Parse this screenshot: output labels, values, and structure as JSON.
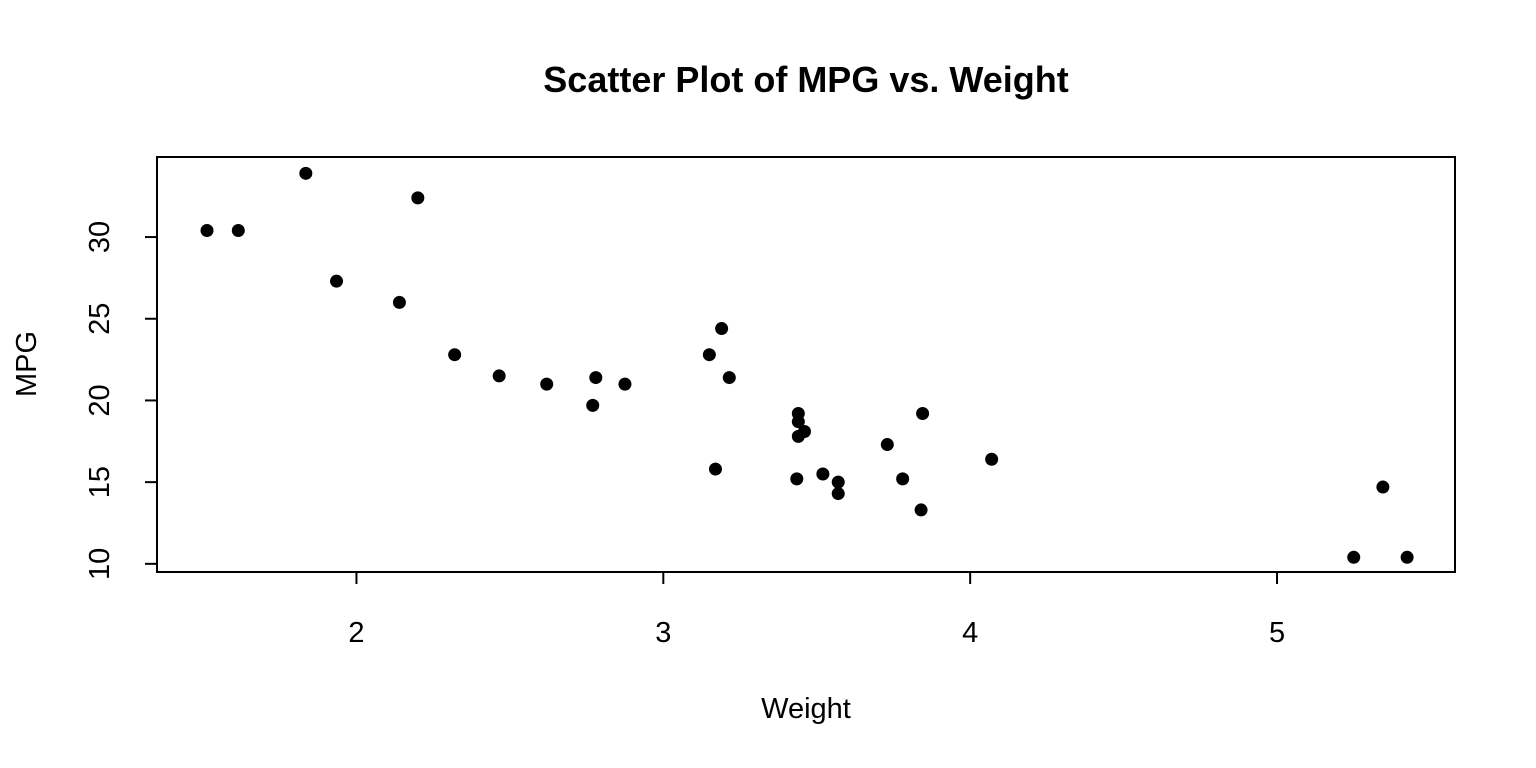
{
  "chart_data": {
    "type": "scatter",
    "title": "Scatter Plot of MPG vs. Weight",
    "xlabel": "Weight",
    "ylabel": "MPG",
    "xlim": [
      1.35,
      5.58
    ],
    "ylim": [
      9.5,
      34.9
    ],
    "xticks": [
      2,
      3,
      4,
      5
    ],
    "yticks": [
      10,
      15,
      20,
      25,
      30
    ],
    "grid": false,
    "point_color": "#000000",
    "points": [
      {
        "x": 2.62,
        "y": 21.0
      },
      {
        "x": 2.875,
        "y": 21.0
      },
      {
        "x": 2.32,
        "y": 22.8
      },
      {
        "x": 3.215,
        "y": 21.4
      },
      {
        "x": 3.44,
        "y": 18.7
      },
      {
        "x": 3.46,
        "y": 18.1
      },
      {
        "x": 3.57,
        "y": 14.3
      },
      {
        "x": 3.19,
        "y": 24.4
      },
      {
        "x": 3.15,
        "y": 22.8
      },
      {
        "x": 3.44,
        "y": 19.2
      },
      {
        "x": 3.44,
        "y": 17.8
      },
      {
        "x": 4.07,
        "y": 16.4
      },
      {
        "x": 3.73,
        "y": 17.3
      },
      {
        "x": 3.78,
        "y": 15.2
      },
      {
        "x": 5.25,
        "y": 10.4
      },
      {
        "x": 5.424,
        "y": 10.4
      },
      {
        "x": 5.345,
        "y": 14.7
      },
      {
        "x": 2.2,
        "y": 32.4
      },
      {
        "x": 1.615,
        "y": 30.4
      },
      {
        "x": 1.835,
        "y": 33.9
      },
      {
        "x": 2.465,
        "y": 21.5
      },
      {
        "x": 3.52,
        "y": 15.5
      },
      {
        "x": 3.435,
        "y": 15.2
      },
      {
        "x": 3.84,
        "y": 13.3
      },
      {
        "x": 3.845,
        "y": 19.2
      },
      {
        "x": 1.935,
        "y": 27.3
      },
      {
        "x": 2.14,
        "y": 26.0
      },
      {
        "x": 1.513,
        "y": 30.4
      },
      {
        "x": 3.17,
        "y": 15.8
      },
      {
        "x": 2.77,
        "y": 19.7
      },
      {
        "x": 3.57,
        "y": 15.0
      },
      {
        "x": 2.78,
        "y": 21.4
      }
    ]
  }
}
